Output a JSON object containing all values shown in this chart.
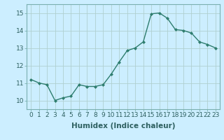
{
  "xlabel": "Humidex (Indice chaleur)",
  "x": [
    0,
    1,
    2,
    3,
    4,
    5,
    6,
    7,
    8,
    9,
    10,
    11,
    12,
    13,
    14,
    15,
    16,
    17,
    18,
    19,
    20,
    21,
    22,
    23
  ],
  "y": [
    11.2,
    11.0,
    10.9,
    10.0,
    10.15,
    10.25,
    10.9,
    10.8,
    10.8,
    10.9,
    11.5,
    12.2,
    12.85,
    13.0,
    13.35,
    14.95,
    15.0,
    14.7,
    14.05,
    14.0,
    13.85,
    13.35,
    13.2,
    13.0
  ],
  "line_color": "#2e7d6e",
  "marker": "D",
  "marker_size": 2.0,
  "background_color": "#cceeff",
  "grid_color": "#b0d0d0",
  "ylim": [
    9.5,
    15.5
  ],
  "yticks": [
    10,
    11,
    12,
    13,
    14,
    15
  ],
  "xtick_labels": [
    "0",
    "1",
    "2",
    "3",
    "4",
    "5",
    "6",
    "7",
    "8",
    "9",
    "10",
    "11",
    "12",
    "13",
    "14",
    "15",
    "16",
    "17",
    "18",
    "19",
    "20",
    "21",
    "22",
    "23"
  ],
  "tick_fontsize": 6.5,
  "xlabel_fontsize": 7.5,
  "line_width": 1.0
}
